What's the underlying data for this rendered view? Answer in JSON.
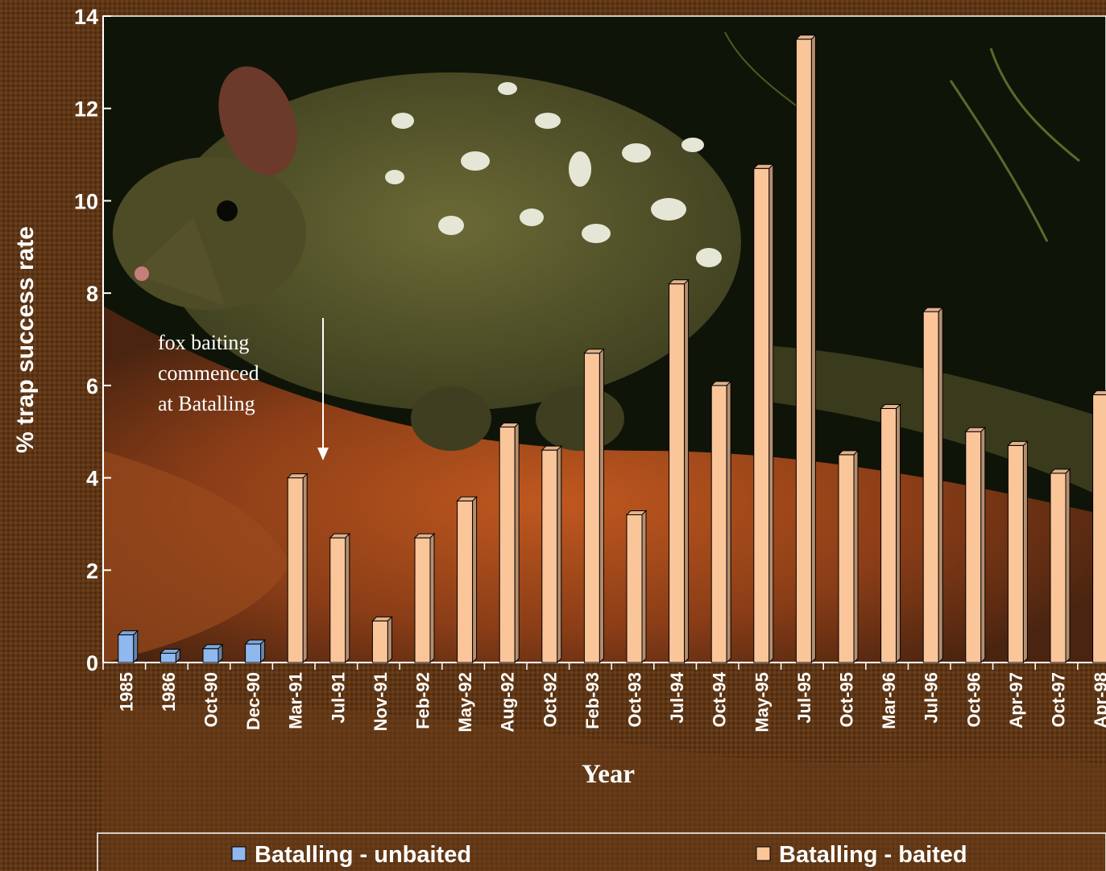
{
  "chart_data": {
    "type": "bar",
    "ylabel": "% trap success rate",
    "xlabel": "Year",
    "ylim": [
      0,
      14
    ],
    "yticks": [
      "0",
      "2",
      "4",
      "6",
      "8",
      "10",
      "12",
      "14"
    ],
    "categories": [
      "1985",
      "1986",
      "Oct-90",
      "Dec-90",
      "Mar-91",
      "Jul-91",
      "Nov-91",
      "Feb-92",
      "May-92",
      "Aug-92",
      "Oct-92",
      "Feb-93",
      "Oct-93",
      "Jul-94",
      "Oct-94",
      "May-95",
      "Jul-95",
      "Oct-95",
      "Mar-96",
      "Jul-96",
      "Oct-96",
      "Apr-97",
      "Oct-97",
      "Apr-98"
    ],
    "series": [
      {
        "name": "Batalling - unbaited",
        "color": "#8fb8ee",
        "values": [
          0.6,
          0.2,
          0.3,
          0.4,
          null,
          null,
          null,
          null,
          null,
          null,
          null,
          null,
          null,
          null,
          null,
          null,
          null,
          null,
          null,
          null,
          null,
          null,
          null,
          null
        ]
      },
      {
        "name": "Batalling - baited",
        "color": "#fbc59a",
        "values": [
          null,
          null,
          null,
          null,
          4.0,
          2.7,
          0.9,
          2.7,
          3.5,
          5.1,
          4.6,
          6.7,
          3.2,
          8.2,
          6.0,
          10.7,
          13.5,
          4.5,
          5.5,
          7.6,
          5.0,
          4.7,
          4.1,
          5.8
        ]
      }
    ],
    "annotation": {
      "lines": [
        "fox baiting",
        "commenced",
        "at Batalling"
      ],
      "points_to": "Mar-91"
    },
    "grid": false,
    "legend_position": "bottom",
    "background": "photograph of a spotted quoll (chuditch) on a log at night"
  }
}
